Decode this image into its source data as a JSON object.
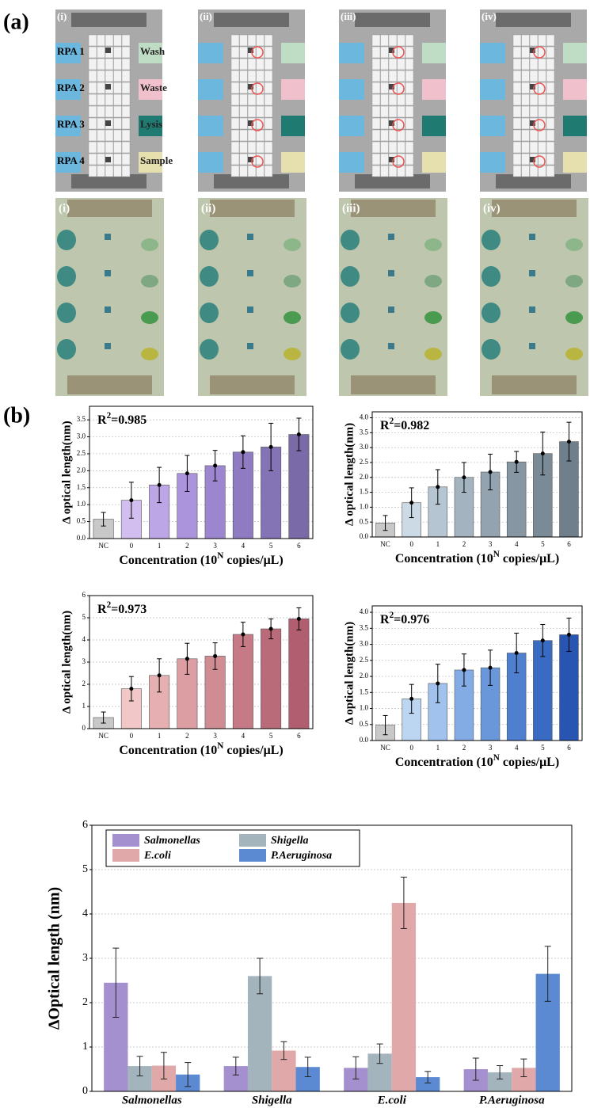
{
  "panel_labels": [
    "(a)",
    "(b)"
  ],
  "subpanels": [
    "(i)",
    "(ii)",
    "(iii)",
    "(iv)"
  ],
  "schematic": {
    "left": [
      "RPA 1",
      "RPA 2",
      "RPA 3",
      "RPA 4"
    ],
    "right": [
      "Wash",
      "Waste",
      "Lysis",
      "Sample"
    ]
  },
  "chart_data": [
    {
      "type": "bar",
      "annotation": [
        "R",
        "2",
        "=0.985"
      ],
      "xlabel": [
        "Concentration (10",
        "N",
        " copies/μL)"
      ],
      "ylabel": "Δ optical length(nm)",
      "categories": [
        "NC",
        "0",
        "1",
        "2",
        "3",
        "4",
        "5",
        "6"
      ],
      "values": [
        0.57,
        1.13,
        1.58,
        1.92,
        2.15,
        2.55,
        2.7,
        3.07
      ],
      "errors": [
        0.2,
        0.53,
        0.52,
        0.53,
        0.45,
        0.48,
        0.7,
        0.48
      ],
      "colors": [
        "#c8c8c8",
        "#d2bff0",
        "#bca6e6",
        "#ab94db",
        "#9d86d0",
        "#8f7bc2",
        "#8474b6",
        "#7a6aa8"
      ],
      "ylim": [
        0,
        3.9
      ],
      "yticks": [
        {
          "value": 0,
          "label": "0.0"
        },
        {
          "value": 0.5,
          "label": "0.5"
        },
        {
          "value": 1,
          "label": "1.0"
        },
        {
          "value": 1.5,
          "label": "1.5"
        },
        {
          "value": 2,
          "label": "2.0"
        },
        {
          "value": 2.5,
          "label": "2.5"
        },
        {
          "value": 3,
          "label": "3.0"
        },
        {
          "value": 3.5,
          "label": "3.5"
        }
      ],
      "grid": true
    },
    {
      "type": "bar",
      "annotation": [
        "R",
        "2",
        "=0.982"
      ],
      "xlabel": [
        "Concentration (10",
        "N",
        " copies/μL)"
      ],
      "ylabel": "Δ optical length(nm)",
      "categories": [
        "NC",
        "0",
        "1",
        "2",
        "3",
        "4",
        "5",
        "6"
      ],
      "values": [
        0.47,
        1.15,
        1.68,
        2.0,
        2.18,
        2.52,
        2.8,
        3.2
      ],
      "errors": [
        0.25,
        0.5,
        0.58,
        0.5,
        0.6,
        0.35,
        0.72,
        0.65
      ],
      "colors": [
        "#c8c8c8",
        "#ccdae6",
        "#b5c5d2",
        "#a3b4c0",
        "#93a4b0",
        "#8696a2",
        "#7a8a96",
        "#6f7f8b"
      ],
      "ylim": [
        0,
        4.2
      ],
      "yticks": [
        {
          "value": 0,
          "label": "0.0"
        },
        {
          "value": 0.5,
          "label": "0.5"
        },
        {
          "value": 1,
          "label": "1.0"
        },
        {
          "value": 1.5,
          "label": "1.5"
        },
        {
          "value": 2,
          "label": "2.0"
        },
        {
          "value": 2.5,
          "label": "2.5"
        },
        {
          "value": 3,
          "label": "3.0"
        },
        {
          "value": 3.5,
          "label": "3.5"
        },
        {
          "value": 4,
          "label": "4.0"
        }
      ],
      "grid": true
    },
    {
      "type": "bar",
      "annotation": [
        "R",
        "2",
        "=0.973"
      ],
      "xlabel": [
        "Concentration (10",
        "N",
        " copies/μL)"
      ],
      "ylabel": "Δ optical length(nm)",
      "categories": [
        "NC",
        "0",
        "1",
        "2",
        "3",
        "4",
        "5",
        "6"
      ],
      "values": [
        0.5,
        1.8,
        2.4,
        3.15,
        3.27,
        4.25,
        4.5,
        4.95
      ],
      "errors": [
        0.25,
        0.55,
        0.75,
        0.7,
        0.6,
        0.55,
        0.45,
        0.5
      ],
      "colors": [
        "#c8c8c8",
        "#f2c7c7",
        "#e6b0b2",
        "#dc9ea2",
        "#d08c93",
        "#c57a86",
        "#ba6b7a",
        "#b05e70"
      ],
      "ylim": [
        0,
        6
      ],
      "yticks": [
        0,
        1,
        2,
        3,
        4,
        5,
        6
      ],
      "grid": true
    },
    {
      "type": "bar",
      "annotation": [
        "R",
        "2",
        "=0.976"
      ],
      "xlabel": [
        "Concentration (10",
        "N",
        " copies/μL)"
      ],
      "ylabel": "Δ optical length(nm)",
      "categories": [
        "NC",
        "0",
        "1",
        "2",
        "3",
        "4",
        "5",
        "6"
      ],
      "values": [
        0.48,
        1.3,
        1.78,
        2.2,
        2.27,
        2.73,
        3.12,
        3.3
      ],
      "errors": [
        0.3,
        0.45,
        0.6,
        0.5,
        0.55,
        0.62,
        0.5,
        0.52
      ],
      "colors": [
        "#c8c8c8",
        "#bcd6f2",
        "#a1c2ec",
        "#84ace4",
        "#6a97da",
        "#4f80cf",
        "#3a6bc3",
        "#2854b2"
      ],
      "ylim": [
        0,
        4.2
      ],
      "yticks": [
        {
          "value": 0,
          "label": "0.0"
        },
        {
          "value": 0.5,
          "label": "0.5"
        },
        {
          "value": 1,
          "label": "1.0"
        },
        {
          "value": 1.5,
          "label": "1.5"
        },
        {
          "value": 2,
          "label": "2.0"
        },
        {
          "value": 2.5,
          "label": "2.5"
        },
        {
          "value": 3,
          "label": "3.0"
        },
        {
          "value": 3.5,
          "label": "3.5"
        },
        {
          "value": 4,
          "label": "4.0"
        }
      ],
      "grid": true
    },
    {
      "type": "grouped_bar",
      "ylabel": "ΔOptical length (nm)",
      "categories": [
        "Salmonellas",
        "Shigella",
        "E.coli",
        "P.Aeruginosa"
      ],
      "series": [
        {
          "name": "Salmonellas",
          "color": "#a48fcf",
          "values": [
            2.45,
            0.57,
            0.53,
            0.5
          ],
          "errors": [
            0.78,
            0.2,
            0.25,
            0.25
          ]
        },
        {
          "name": "Shigella",
          "color": "#a3b4bd",
          "values": [
            0.57,
            2.6,
            0.85,
            0.43
          ],
          "errors": [
            0.22,
            0.4,
            0.22,
            0.15
          ]
        },
        {
          "name": "E.coli",
          "color": "#e0a8a8",
          "values": [
            0.58,
            0.92,
            4.25,
            0.53
          ],
          "errors": [
            0.3,
            0.2,
            0.58,
            0.2
          ]
        },
        {
          "name": "P.Aeruginosa",
          "color": "#5b8ad3",
          "values": [
            0.38,
            0.55,
            0.32,
            2.65
          ],
          "errors": [
            0.27,
            0.22,
            0.13,
            0.62
          ]
        }
      ],
      "ylim": [
        0,
        6
      ],
      "yticks": [
        0,
        1,
        2,
        3,
        4,
        5,
        6
      ],
      "grid": true,
      "legend": "top-left"
    }
  ]
}
